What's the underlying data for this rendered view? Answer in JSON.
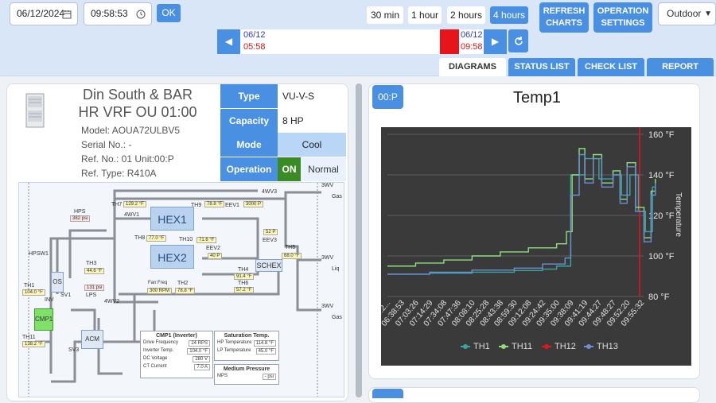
{
  "toolbar": {
    "date_value": "06/12/2024",
    "time_value": "09:58:53",
    "ok_label": "OK",
    "ranges": [
      "30 min",
      "1 hour",
      "2 hours",
      "4 hours"
    ],
    "active_range": "4 hours",
    "refresh_label_1": "REFRESH",
    "refresh_label_2": "CHARTS",
    "settings_label_1": "OPERATION",
    "settings_label_2": "SETTINGS",
    "location_value": "Outdoor"
  },
  "timeline": {
    "prev_icon": "chevron-left",
    "next_icon": "chevron-right",
    "reset_icon": "refresh",
    "start_date": "06/12",
    "start_time": "05:58",
    "end_date": "06/12",
    "end_time": "09:58",
    "marker_color": "#e8141c"
  },
  "tabs": [
    "DIAGRAMS",
    "STATUS LIST",
    "CHECK LIST",
    "REPORT"
  ],
  "active_tab": "DIAGRAMS",
  "unit": {
    "name_line1": "Din South & BAR",
    "name_line2": "HR VRF OU 01:00",
    "model": "Model: AOUA72ULBV5",
    "serial": "Serial No.: -",
    "ref_no": "Ref. No.: 01 Unit:00:P",
    "ref_type": "Ref. Type: R410A",
    "props": [
      {
        "key": "Type",
        "value": "VU-V-S"
      },
      {
        "key": "Capacity",
        "value": "8 HP"
      },
      {
        "key": "Mode",
        "value": "Cool"
      }
    ],
    "operation_key": "Operation",
    "operation_state": "ON",
    "operation_value": "Normal"
  },
  "diagram": {
    "hex1": "HEX1",
    "hex2": "HEX2",
    "schex": "SCHEX",
    "os": "OS",
    "acm": "ACM",
    "cmp1": "CMP1",
    "labels": {
      "th7": "TH7",
      "th8": "TH8",
      "th9": "TH9",
      "th10": "TH10",
      "th2": "TH2",
      "th3": "TH3",
      "th4": "TH4",
      "th5": "TH5",
      "th6": "TH6",
      "th1": "TH1",
      "th11": "TH11",
      "eev1": "EEV1",
      "eev2": "EEV2",
      "eev3": "EEV3",
      "hps": "HPS",
      "hpsw1": "HPSW1",
      "lps": "LPS",
      "inv": "INV",
      "sv1": "SV1",
      "sv3": "SV3",
      "wv4_1": "4WV1",
      "wv4_2": "4WV2",
      "wv4_3": "4WV3",
      "wv3_gas": "3WV",
      "wv3_liq": "3WV",
      "wv3_gas2": "3WV",
      "gas": "Gas",
      "liq": "Liq",
      "gas2": "Gas",
      "fan_freq": "Fan Freq"
    },
    "values": {
      "th7": "129.2 °F",
      "th8": "77.0 °F",
      "th9": "78.8 °F",
      "th10": "71.6 °F",
      "eev1": "3000 P",
      "eev2": "40 P",
      "eev3": "52 P",
      "th5": "68.0 °F",
      "th4": "91.4 °F",
      "th6": "57.2 °F",
      "th2": "78.8 °F",
      "fan": "300 RPM",
      "hps": "382 psi",
      "lps": "131 psi",
      "th3": "44.6 °F",
      "th1": "104.0 °F",
      "th11": "138.2 °F"
    },
    "cmp_panel_title": "CMP1 (Inverter)",
    "cmp_rows": [
      {
        "k": "Drive Frequency",
        "v": "24 RPS"
      },
      {
        "k": "Inverter Temp.",
        "v": "104.0 °F"
      },
      {
        "k": "DC Voltage",
        "v": "280 V"
      },
      {
        "k": "CT Current",
        "v": "7.0 A"
      }
    ],
    "sat_title": "Saturation Temp.",
    "sat_rows": [
      {
        "k": "HP Temperature",
        "v": "114.8 °F"
      },
      {
        "k": "LP Temperature",
        "v": "45.0 °F"
      }
    ],
    "mp_title": "Medium Pressure",
    "mp_rows": [
      {
        "k": "MPS",
        "v": "- psi"
      }
    ]
  },
  "chart_panel": {
    "badge": "00:P"
  },
  "chart_data": {
    "type": "line",
    "title": "Temp1",
    "ylabel": "Temperature",
    "ylim": [
      80,
      160
    ],
    "y_ticks": [
      "80 °F",
      "100 °F",
      "120 °F",
      "140 °F",
      "160 °F"
    ],
    "x_ticks": [
      "06:2...",
      "06:38:53",
      "07:03:26",
      "07:14:29",
      "07:34:08",
      "07:47:36",
      "08:08:10",
      "08:25:28",
      "08:43:38",
      "08:59:30",
      "09:12:08",
      "09:24:42",
      "09:35:00",
      "09:38:09",
      "09:41:19",
      "09:44:27",
      "09:48:27",
      "09:52:20",
      "09:55:32"
    ],
    "series": [
      {
        "name": "TH1",
        "color": "#3aa6a0",
        "points": [
          [
            0,
            91
          ],
          [
            3,
            91.5
          ],
          [
            6,
            92
          ],
          [
            9,
            92.8
          ],
          [
            11,
            93.5
          ],
          [
            12,
            95
          ],
          [
            13,
            140
          ],
          [
            14,
            148
          ],
          [
            15,
            138
          ],
          [
            16,
            140
          ],
          [
            16.6,
            130
          ],
          [
            17.2,
            140
          ],
          [
            17.8,
            122
          ],
          [
            18.3,
            112
          ],
          [
            18.8,
            134
          ],
          [
            19,
            138
          ]
        ]
      },
      {
        "name": "TH11",
        "color": "#8ee07a",
        "points": [
          [
            0,
            95
          ],
          [
            2,
            96.5
          ],
          [
            4,
            98
          ],
          [
            6,
            100
          ],
          [
            8,
            102
          ],
          [
            10,
            104
          ],
          [
            12,
            106
          ],
          [
            12.7,
            112
          ],
          [
            13.1,
            140
          ],
          [
            13.6,
            153
          ],
          [
            14,
            138
          ],
          [
            14.6,
            150
          ],
          [
            15.2,
            136
          ],
          [
            16,
            142
          ],
          [
            16.5,
            128
          ],
          [
            17,
            146
          ],
          [
            17.6,
            124
          ],
          [
            18.2,
            109
          ],
          [
            18.7,
            132
          ],
          [
            19,
            138
          ]
        ]
      },
      {
        "name": "TH12",
        "color": "#e8141c",
        "points": []
      },
      {
        "name": "TH13",
        "color": "#6b8fd6",
        "points": [
          [
            0,
            91
          ],
          [
            3,
            92
          ],
          [
            6,
            93
          ],
          [
            9,
            94
          ],
          [
            11,
            96
          ],
          [
            12.6,
            99
          ],
          [
            13,
            130
          ],
          [
            13.6,
            150
          ],
          [
            14,
            136
          ],
          [
            14.6,
            148
          ],
          [
            15.2,
            134
          ],
          [
            16,
            140
          ],
          [
            16.5,
            126
          ],
          [
            17,
            144
          ],
          [
            17.6,
            122
          ],
          [
            18.2,
            107
          ],
          [
            18.7,
            130
          ],
          [
            19,
            136
          ]
        ]
      }
    ],
    "marker_line_color": "#e8141c",
    "grid": true,
    "legend_position": "bottom"
  }
}
